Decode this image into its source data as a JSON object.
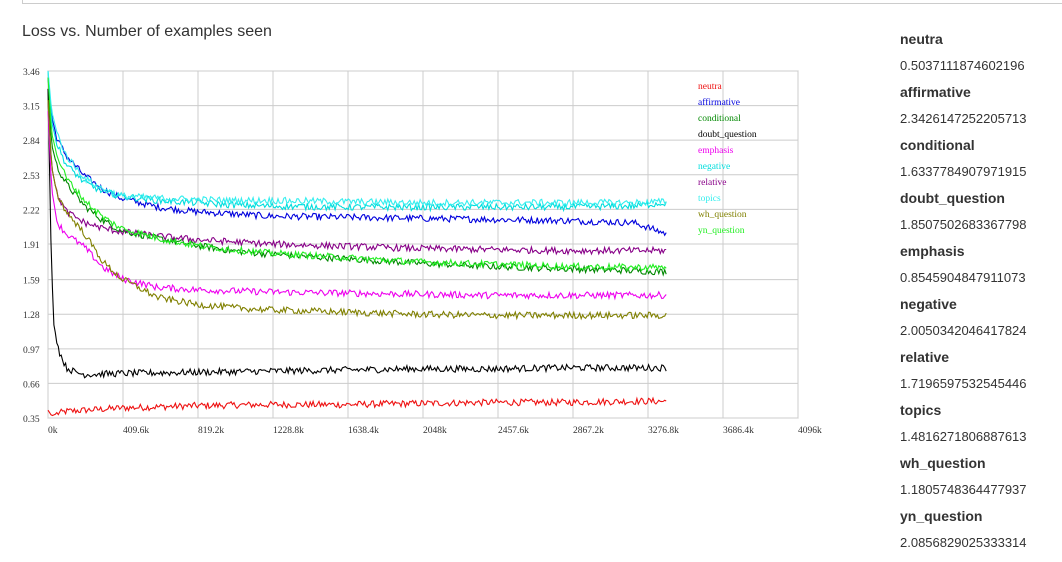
{
  "chart_data": {
    "type": "line",
    "title": "Loss vs. Number of examples seen",
    "xlabel": "",
    "ylabel": "",
    "xlim": [
      0,
      4096
    ],
    "ylim": [
      0.35,
      3.46
    ],
    "x_unit_suffix": "k",
    "x_ticks": [
      0,
      409.6,
      819.2,
      1228.8,
      1638.4,
      2048,
      2457.6,
      2867.2,
      3276.8,
      3686.4,
      4096
    ],
    "x_tick_labels": [
      "0k",
      "409.6k",
      "819.2k",
      "1228.8k",
      "1638.4k",
      "2048k",
      "2457.6k",
      "2867.2k",
      "3276.8k",
      "3686.4k",
      "4096k"
    ],
    "y_ticks": [
      0.35,
      0.66,
      0.97,
      1.28,
      1.59,
      1.91,
      2.22,
      2.53,
      2.84,
      3.15,
      3.46
    ],
    "y_tick_labels": [
      "0.35",
      "0.66",
      "0.97",
      "1.28",
      "1.59",
      "1.91",
      "2.22",
      "2.53",
      "2.84",
      "3.15",
      "3.46"
    ],
    "grid": true,
    "legend_position": "top-right",
    "series": [
      {
        "name": "neutra",
        "color": "#ee1111",
        "x": [
          0,
          20,
          50,
          100,
          200,
          400,
          800,
          1200,
          1600,
          2000,
          2400,
          2800,
          3200,
          3380
        ],
        "y": [
          0.42,
          0.37,
          0.39,
          0.41,
          0.42,
          0.44,
          0.46,
          0.47,
          0.47,
          0.48,
          0.49,
          0.49,
          0.5,
          0.5
        ]
      },
      {
        "name": "affirmative",
        "color": "#0000dd",
        "x": [
          0,
          20,
          50,
          100,
          200,
          300,
          400,
          600,
          800,
          1000,
          1200,
          1600,
          2000,
          2400,
          2800,
          3200,
          3380
        ],
        "y": [
          3.4,
          3.05,
          2.85,
          2.7,
          2.52,
          2.4,
          2.32,
          2.24,
          2.2,
          2.18,
          2.16,
          2.15,
          2.14,
          2.13,
          2.12,
          2.1,
          2.0
        ]
      },
      {
        "name": "conditional",
        "color": "#008800",
        "x": [
          0,
          20,
          50,
          100,
          200,
          300,
          400,
          600,
          800,
          1000,
          1200,
          1600,
          2000,
          2400,
          2800,
          3200,
          3380
        ],
        "y": [
          3.3,
          2.8,
          2.6,
          2.45,
          2.25,
          2.12,
          2.03,
          1.96,
          1.9,
          1.85,
          1.82,
          1.78,
          1.74,
          1.71,
          1.69,
          1.67,
          1.66
        ]
      },
      {
        "name": "doubt_question",
        "color": "#000000",
        "x": [
          0,
          15,
          30,
          60,
          100,
          150,
          200,
          400,
          800,
          1200,
          1600,
          2000,
          2400,
          2800,
          3200,
          3380
        ],
        "y": [
          3.3,
          2.0,
          1.2,
          0.95,
          0.8,
          0.76,
          0.74,
          0.75,
          0.76,
          0.77,
          0.78,
          0.79,
          0.79,
          0.8,
          0.8,
          0.8
        ]
      },
      {
        "name": "emphasis",
        "color": "#ee00ee",
        "x": [
          0,
          20,
          50,
          100,
          200,
          300,
          400,
          600,
          800,
          1000,
          1200,
          1600,
          2000,
          2400,
          2800,
          3200,
          3380
        ],
        "y": [
          3.1,
          2.4,
          2.1,
          2.0,
          1.88,
          1.7,
          1.6,
          1.52,
          1.5,
          1.49,
          1.48,
          1.47,
          1.46,
          1.45,
          1.45,
          1.45,
          1.45
        ]
      },
      {
        "name": "negative",
        "color": "#00dddd",
        "x": [
          0,
          20,
          50,
          100,
          200,
          300,
          400,
          600,
          800,
          1000,
          1200,
          1600,
          2000,
          2400,
          2800,
          3200,
          3380
        ],
        "y": [
          3.46,
          3.0,
          2.8,
          2.62,
          2.46,
          2.38,
          2.34,
          2.3,
          2.28,
          2.26,
          2.25,
          2.24,
          2.24,
          2.24,
          2.24,
          2.25,
          2.28
        ]
      },
      {
        "name": "relative",
        "color": "#880088",
        "x": [
          0,
          20,
          50,
          100,
          200,
          300,
          400,
          600,
          800,
          1000,
          1200,
          1600,
          2000,
          2400,
          2800,
          3200,
          3380
        ],
        "y": [
          3.2,
          2.6,
          2.35,
          2.2,
          2.1,
          2.05,
          2.02,
          1.98,
          1.95,
          1.93,
          1.91,
          1.89,
          1.87,
          1.86,
          1.85,
          1.85,
          1.85
        ]
      },
      {
        "name": "topics",
        "color": "#33eeee",
        "x": [
          0,
          20,
          50,
          100,
          200,
          300,
          400,
          600,
          800,
          1000,
          1200,
          1600,
          2000,
          2400,
          2800,
          3200,
          3380
        ],
        "y": [
          3.46,
          3.1,
          2.9,
          2.7,
          2.5,
          2.4,
          2.34,
          2.32,
          2.31,
          2.3,
          2.3,
          2.29,
          2.28,
          2.28,
          2.28,
          2.28,
          2.29
        ]
      },
      {
        "name": "wh_question",
        "color": "#808000",
        "x": [
          0,
          20,
          50,
          100,
          200,
          300,
          400,
          600,
          800,
          1000,
          1200,
          1600,
          2000,
          2400,
          2800,
          3200,
          3380
        ],
        "y": [
          3.2,
          2.6,
          2.35,
          2.2,
          2.0,
          1.75,
          1.6,
          1.43,
          1.37,
          1.34,
          1.32,
          1.3,
          1.28,
          1.27,
          1.27,
          1.27,
          1.27
        ]
      },
      {
        "name": "yn_question",
        "color": "#22ee22",
        "x": [
          0,
          20,
          50,
          100,
          200,
          300,
          400,
          600,
          800,
          1000,
          1200,
          1600,
          2000,
          2400,
          2800,
          3200,
          3380
        ],
        "y": [
          3.4,
          2.9,
          2.7,
          2.5,
          2.3,
          2.15,
          2.05,
          1.96,
          1.9,
          1.86,
          1.83,
          1.79,
          1.75,
          1.73,
          1.71,
          1.7,
          1.7
        ]
      }
    ]
  },
  "side_panel": [
    {
      "name": "neutra",
      "value": "0.5037111874602196"
    },
    {
      "name": "affirmative",
      "value": "2.3426147252205713"
    },
    {
      "name": "conditional",
      "value": "1.6337784907971915"
    },
    {
      "name": "doubt_question",
      "value": "1.8507502683367798"
    },
    {
      "name": "emphasis",
      "value": "0.8545904847911073"
    },
    {
      "name": "negative",
      "value": "2.0050342046417824"
    },
    {
      "name": "relative",
      "value": "1.7196597532545446"
    },
    {
      "name": "topics",
      "value": "1.4816271806887613"
    },
    {
      "name": "wh_question",
      "value": "1.1805748364477937"
    },
    {
      "name": "yn_question",
      "value": "2.0856829025333314"
    }
  ]
}
